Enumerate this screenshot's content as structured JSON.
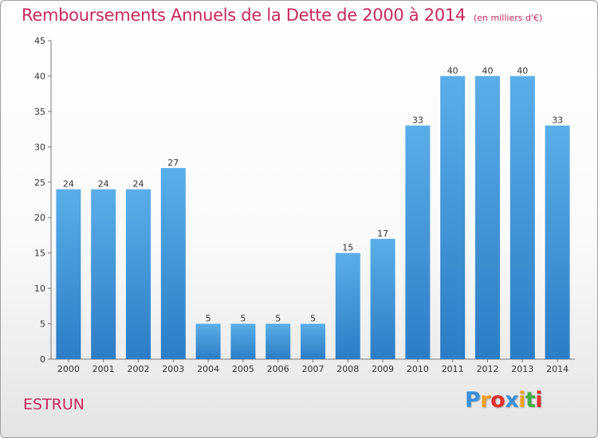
{
  "chart_data": {
    "type": "bar",
    "title": "Remboursements Annuels de la Dette de 2000 à 2014",
    "subtitle": "(en milliers d'€)",
    "categories": [
      "2000",
      "2001",
      "2002",
      "2003",
      "2004",
      "2005",
      "2006",
      "2007",
      "2008",
      "2009",
      "2010",
      "2011",
      "2012",
      "2013",
      "2014"
    ],
    "values": [
      24,
      24,
      24,
      27,
      5,
      5,
      5,
      5,
      15,
      17,
      33,
      40,
      40,
      40,
      33
    ],
    "ylim": [
      0,
      45
    ],
    "yticks": [
      0,
      5,
      10,
      15,
      20,
      25,
      30,
      35,
      40,
      45
    ],
    "xlabel": "",
    "ylabel": "",
    "grid": false
  },
  "commune": "ESTRUN",
  "logo": {
    "letters": [
      "P",
      "r",
      "o",
      "x",
      "i",
      "t",
      "i"
    ],
    "colors": [
      "#3b8fd8",
      "#f0a020",
      "#e03030",
      "#3b8fd8",
      "#f0a020",
      "#44aa44",
      "#e03030"
    ]
  },
  "colors": {
    "title": "#c8285a",
    "bar_light": "#5aaee8",
    "bar_dark": "#2c7dc5"
  }
}
